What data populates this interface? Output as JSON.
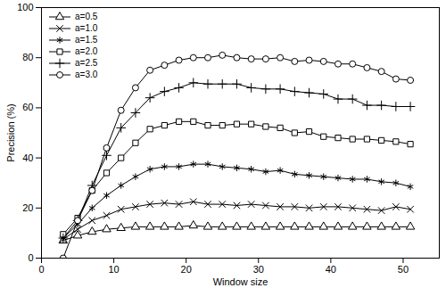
{
  "chart_data": {
    "type": "line",
    "x_label": "Window size",
    "y_label": "Precision (%)",
    "xlim": [
      0,
      55
    ],
    "xticks": [
      0,
      10,
      20,
      30,
      40,
      50
    ],
    "ylim": [
      0,
      100
    ],
    "yticks": [
      0,
      20,
      40,
      60,
      80,
      100
    ],
    "grid": false,
    "legend": "upper left",
    "x": [
      3,
      5,
      7,
      9,
      11,
      13,
      15,
      17,
      19,
      21,
      23,
      25,
      27,
      29,
      31,
      33,
      35,
      37,
      39,
      41,
      43,
      45,
      47,
      49,
      51
    ],
    "series": [
      {
        "name": "a=0.5",
        "color": "#000000",
        "marker": "triangle",
        "values": [
          7,
          9,
          10.5,
          11.5,
          12,
          12.5,
          12.5,
          12.5,
          12.5,
          13,
          12.5,
          12.5,
          12.5,
          12.5,
          12.5,
          12.5,
          12.5,
          12.5,
          12.5,
          12.5,
          12.5,
          12.5,
          12.5,
          12.5,
          12.5
        ]
      },
      {
        "name": "a=1.0",
        "color": "#000000",
        "marker": "times",
        "values": [
          7.5,
          11.5,
          15,
          17,
          19.5,
          20.5,
          21.5,
          22,
          21.5,
          22.5,
          21.5,
          21.5,
          21,
          21.5,
          21,
          20.5,
          20.5,
          20,
          20.5,
          20.5,
          20,
          19.5,
          19,
          20.5,
          19.5
        ]
      },
      {
        "name": "a=1.5",
        "color": "#000000",
        "marker": "asterisk",
        "values": [
          8,
          13.5,
          20,
          25,
          29,
          32.5,
          35.5,
          36.5,
          36.5,
          37.5,
          37.5,
          36.5,
          36,
          35.5,
          34.5,
          35,
          33.5,
          33,
          32.5,
          32,
          31.5,
          31.5,
          30.5,
          30,
          28.5
        ]
      },
      {
        "name": "a=2.0",
        "color": "#000000",
        "marker": "square",
        "values": [
          9.5,
          16,
          27,
          34,
          40,
          46,
          51.5,
          53,
          54.5,
          54.5,
          53,
          53,
          53.5,
          53.5,
          52.5,
          52,
          50,
          50.5,
          48.5,
          48,
          47.5,
          47.5,
          47,
          46.5,
          45.5
        ]
      },
      {
        "name": "a=2.5",
        "color": "#000000",
        "marker": "plus",
        "values": [
          8,
          15,
          29,
          41,
          52,
          58,
          64,
          66.5,
          68,
          70,
          69.5,
          69.5,
          69.5,
          68,
          67.5,
          67.5,
          66.5,
          66,
          65.5,
          63.5,
          63.5,
          61,
          61,
          60.5,
          60.5
        ]
      },
      {
        "name": "a=3.0",
        "color": "#000000",
        "marker": "circle",
        "values": [
          0,
          15,
          27,
          44,
          59,
          68,
          75,
          77,
          79,
          80,
          80,
          81,
          80,
          79.5,
          79.5,
          80,
          78.5,
          79,
          78.5,
          77.5,
          77.5,
          76,
          74.5,
          71.5,
          71
        ]
      }
    ]
  }
}
